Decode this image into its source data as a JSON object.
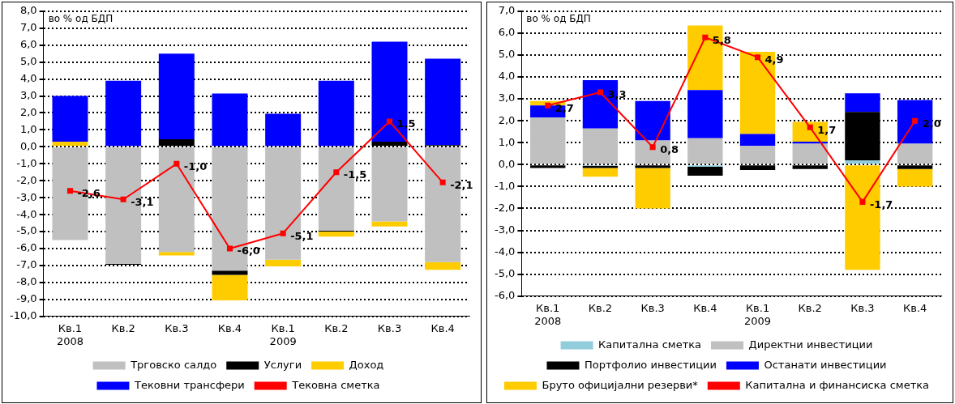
{
  "chart_data": [
    {
      "type": "bar",
      "stacked": true,
      "grid": "y",
      "legend": "bottom",
      "marker": "square",
      "annotations": [
        "во % од БДП"
      ],
      "categories": [
        "Кв.1\n2008",
        "Кв.2",
        "Кв.3",
        "Кв.4",
        "Кв.1\n2009",
        "Кв.2",
        "Кв.3",
        "Кв.4"
      ],
      "ylim": [
        -10,
        8
      ],
      "yticks": [
        {
          "value": -10,
          "label": "-10,0"
        },
        {
          "value": -9,
          "label": "-9,0"
        },
        {
          "value": -8,
          "label": "-8,0"
        },
        {
          "value": -7,
          "label": "-7,0"
        },
        {
          "value": -6,
          "label": "-6,0"
        },
        {
          "value": -5,
          "label": "-5,0"
        },
        {
          "value": -4,
          "label": "-4,0"
        },
        {
          "value": -3,
          "label": "-3,0"
        },
        {
          "value": -2,
          "label": "-2,0"
        },
        {
          "value": -1,
          "label": "-1,0"
        },
        {
          "value": 0,
          "label": "0,0"
        },
        {
          "value": 1,
          "label": "1,0"
        },
        {
          "value": 2,
          "label": "2,0"
        },
        {
          "value": 3,
          "label": "3,0"
        },
        {
          "value": 4,
          "label": "4,0"
        },
        {
          "value": 5,
          "label": "5,0"
        },
        {
          "value": 6,
          "label": "6,0"
        },
        {
          "value": 7,
          "label": "7,0"
        },
        {
          "value": 8,
          "label": "8,0"
        }
      ],
      "series": [
        {
          "name": "Трговско салдо",
          "color": "#c0c0c0",
          "values": [
            -5.5,
            -6.9,
            -6.2,
            -7.3,
            -6.65,
            -4.95,
            -4.4,
            -6.8
          ]
        },
        {
          "name": "Услуги",
          "color": "#000000",
          "values": [
            null,
            -0.05,
            0.45,
            -0.25,
            null,
            -0.05,
            0.3,
            0.1
          ]
        },
        {
          "name": "Доход",
          "color": "#ffcc00",
          "values": [
            0.3,
            null,
            -0.2,
            -1.5,
            -0.4,
            -0.3,
            -0.3,
            -0.45
          ]
        },
        {
          "name": "Тековни трансфери",
          "color": "#0000ff",
          "values": [
            2.7,
            3.9,
            5.05,
            3.15,
            1.95,
            3.9,
            5.9,
            5.1
          ]
        },
        {
          "name": "Тековна сметка",
          "type": "line",
          "color": "#ff0000",
          "values": [
            -2.6,
            -3.1,
            -1.0,
            -6.0,
            -5.1,
            -1.5,
            1.5,
            -2.1
          ],
          "value_labels": [
            "-2,6",
            "-3,1",
            "-1,0",
            "-6,0",
            "-5,1",
            "-1,5",
            "1,5",
            "-2,1"
          ]
        }
      ]
    },
    {
      "type": "bar",
      "stacked": true,
      "grid": "y",
      "legend": "bottom",
      "marker": "square",
      "annotations": [
        "во % од БДП"
      ],
      "categories": [
        "Кв.1\n2008",
        "Кв.2",
        "Кв.3",
        "Кв.4",
        "Кв.1\n2009",
        "Кв.2",
        "Кв.3",
        "Кв.4"
      ],
      "ylim": [
        -6,
        7
      ],
      "yticks": [
        {
          "value": -6,
          "label": "-6,0"
        },
        {
          "value": -5,
          "label": "-5,0"
        },
        {
          "value": -4,
          "label": "-4,0"
        },
        {
          "value": -3,
          "label": "-3,0"
        },
        {
          "value": -2,
          "label": "-2,0"
        },
        {
          "value": -1,
          "label": "-1,0"
        },
        {
          "value": 0,
          "label": "0,0"
        },
        {
          "value": 1,
          "label": "1,0"
        },
        {
          "value": 2,
          "label": "2,0"
        },
        {
          "value": 3,
          "label": "3,0"
        },
        {
          "value": 4,
          "label": "4,0"
        },
        {
          "value": 5,
          "label": "5,0"
        },
        {
          "value": 6,
          "label": "6,0"
        },
        {
          "value": 7,
          "label": "7,0"
        }
      ],
      "series": [
        {
          "name": "Капитална сметка",
          "color": "#92cddc",
          "values": [
            null,
            -0.05,
            null,
            -0.1,
            null,
            null,
            0.2,
            null
          ]
        },
        {
          "name": "Директни инвестиции",
          "color": "#c0c0c0",
          "values": [
            2.15,
            1.65,
            1.1,
            1.2,
            0.85,
            0.95,
            null,
            0.95
          ]
        },
        {
          "name": "Портфолио инвестиции",
          "color": "#000000",
          "values": [
            -0.15,
            -0.1,
            -0.15,
            -0.4,
            -0.25,
            -0.2,
            2.2,
            -0.2
          ]
        },
        {
          "name": "Останати инвестиции",
          "color": "#0000ff",
          "values": [
            0.55,
            2.2,
            1.8,
            2.2,
            0.55,
            0.1,
            0.85,
            2.0
          ]
        },
        {
          "name": "Бруто официјални резерви*",
          "color": "#ffcc00",
          "values": [
            0.2,
            -0.4,
            -1.85,
            2.95,
            3.75,
            0.9,
            -4.8,
            -0.8
          ]
        },
        {
          "name": "Капитална и финансиска сметка",
          "type": "line",
          "color": "#ff0000",
          "values": [
            2.7,
            3.3,
            0.8,
            5.8,
            4.9,
            1.7,
            -1.7,
            2.0
          ],
          "value_labels": [
            "2,7",
            "3,3",
            "0,8",
            "5,8",
            "4,9",
            "1,7",
            "-1,7",
            "2,0"
          ]
        }
      ]
    }
  ]
}
